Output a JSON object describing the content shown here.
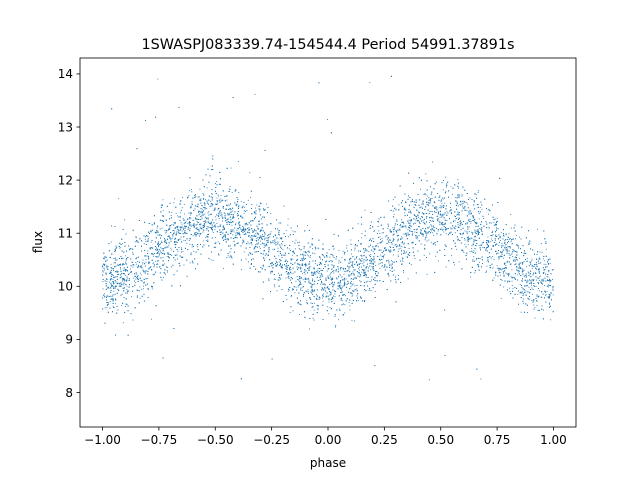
{
  "chart_data": {
    "type": "scatter",
    "title": "1SWASPJ083339.74-154544.4 Period 54991.37891s",
    "xlabel": "phase",
    "ylabel": "flux",
    "xlim": [
      -1.1,
      1.1
    ],
    "ylim": [
      7.35,
      14.3
    ],
    "xticks": [
      -1.0,
      -0.75,
      -0.5,
      -0.25,
      0.0,
      0.25,
      0.5,
      0.75,
      1.0
    ],
    "xtick_labels": [
      "−1.00",
      "−0.75",
      "−0.50",
      "−0.25",
      "0.00",
      "0.25",
      "0.50",
      "0.75",
      "1.00"
    ],
    "yticks": [
      8,
      9,
      10,
      11,
      12,
      13,
      14
    ],
    "ytick_labels": [
      "8",
      "9",
      "10",
      "11",
      "12",
      "13",
      "14"
    ],
    "grid": false,
    "marker_color": "#1f77b4",
    "series": [
      {
        "description": "Phase-folded light curve: dense band of points following a double-humped variation (period 1.0 in phase), minima near flux 10.1 at phase -1, 0, 1 and maxima near flux 11.3 at phase -0.5 and 0.5, with scatter spread about +/-0.5 plus sparse outliers from 7.8 to 14.0",
        "model": {
          "minimum_flux": 10.1,
          "maximum_flux": 11.3,
          "minima_phase": [
            -1.0,
            0.0,
            1.0
          ],
          "maxima_phase": [
            -0.5,
            0.5
          ],
          "scatter_sigma": 0.35,
          "outlier_range": [
            7.8,
            14.0
          ],
          "x_range": [
            -1.0,
            1.0
          ]
        }
      }
    ]
  }
}
